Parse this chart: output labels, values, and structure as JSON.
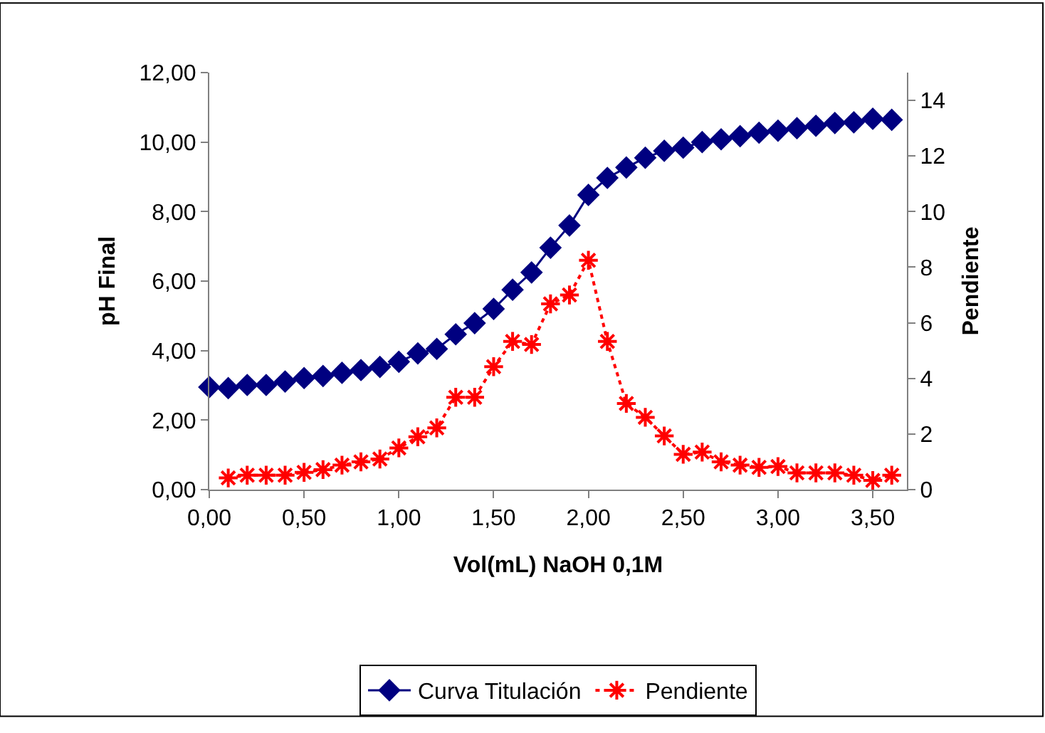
{
  "chart_data": {
    "type": "line",
    "xlabel": "Vol(mL) NaOH 0,1M",
    "ylabel": "pH Final",
    "y2label": "Pendiente",
    "xlim": [
      0,
      3.68
    ],
    "xticks": [
      {
        "value": 0,
        "label": "0,00"
      },
      {
        "value": 0.5,
        "label": "0,50"
      },
      {
        "value": 1,
        "label": "1,00"
      },
      {
        "value": 1.5,
        "label": "1,50"
      },
      {
        "value": 2,
        "label": "2,00"
      },
      {
        "value": 2.5,
        "label": "2,50"
      },
      {
        "value": 3,
        "label": "3,00"
      },
      {
        "value": 3.5,
        "label": "3,50"
      }
    ],
    "ylim": [
      0,
      12
    ],
    "yticks": [
      {
        "value": 0,
        "label": "0,00"
      },
      {
        "value": 2,
        "label": "2,00"
      },
      {
        "value": 4,
        "label": "4,00"
      },
      {
        "value": 6,
        "label": "6,00"
      },
      {
        "value": 8,
        "label": "8,00"
      },
      {
        "value": 10,
        "label": "10,00"
      },
      {
        "value": 12,
        "label": "12,00"
      }
    ],
    "y2lim": [
      0,
      15
    ],
    "y2ticks": [
      0,
      2,
      4,
      6,
      8,
      10,
      12,
      14
    ],
    "legend": "bottom",
    "series": [
      {
        "name": "Curva Titulación",
        "color": "#000080",
        "marker": "diamond",
        "line_style": "solid",
        "x": [
          0,
          0.1,
          0.2,
          0.3,
          0.4,
          0.5,
          0.6,
          0.7,
          0.8,
          0.9,
          1.0,
          1.1,
          1.2,
          1.3,
          1.4,
          1.5,
          1.6,
          1.7,
          1.8,
          1.9,
          2.0,
          2.1,
          2.2,
          2.3,
          2.4,
          2.5,
          2.6,
          2.7,
          2.8,
          2.9,
          3.0,
          3.1,
          3.2,
          3.3,
          3.4,
          3.5,
          3.6
        ],
        "values": [
          2.95,
          2.92,
          3.01,
          3.01,
          3.11,
          3.21,
          3.27,
          3.36,
          3.44,
          3.53,
          3.68,
          3.92,
          4.05,
          4.47,
          4.79,
          5.2,
          5.75,
          6.25,
          6.96,
          7.6,
          8.48,
          8.97,
          9.27,
          9.55,
          9.75,
          9.84,
          10.0,
          10.08,
          10.17,
          10.27,
          10.33,
          10.4,
          10.47,
          10.55,
          10.57,
          10.67,
          10.64
        ]
      },
      {
        "name": "Pendiente",
        "color": "#ff0000",
        "marker": "cross",
        "line_style": "dotted",
        "axis": "y2",
        "x": [
          0.1,
          0.2,
          0.3,
          0.4,
          0.5,
          0.6,
          0.7,
          0.8,
          0.9,
          1.0,
          1.1,
          1.2,
          1.3,
          1.4,
          1.5,
          1.6,
          1.7,
          1.8,
          1.9,
          2.0,
          2.1,
          2.2,
          2.3,
          2.4,
          2.5,
          2.6,
          2.7,
          2.8,
          2.9,
          3.0,
          3.1,
          3.2,
          3.3,
          3.4,
          3.5,
          3.6
        ],
        "values": [
          0.42,
          0.52,
          0.52,
          0.52,
          0.62,
          0.72,
          0.88,
          1.0,
          1.1,
          1.5,
          1.9,
          2.22,
          3.32,
          3.32,
          4.42,
          5.33,
          5.22,
          6.68,
          7.0,
          8.25,
          5.33,
          3.1,
          2.6,
          1.93,
          1.27,
          1.35,
          1.0,
          0.88,
          0.8,
          0.83,
          0.6,
          0.6,
          0.6,
          0.52,
          0.33,
          0.52
        ]
      }
    ]
  }
}
